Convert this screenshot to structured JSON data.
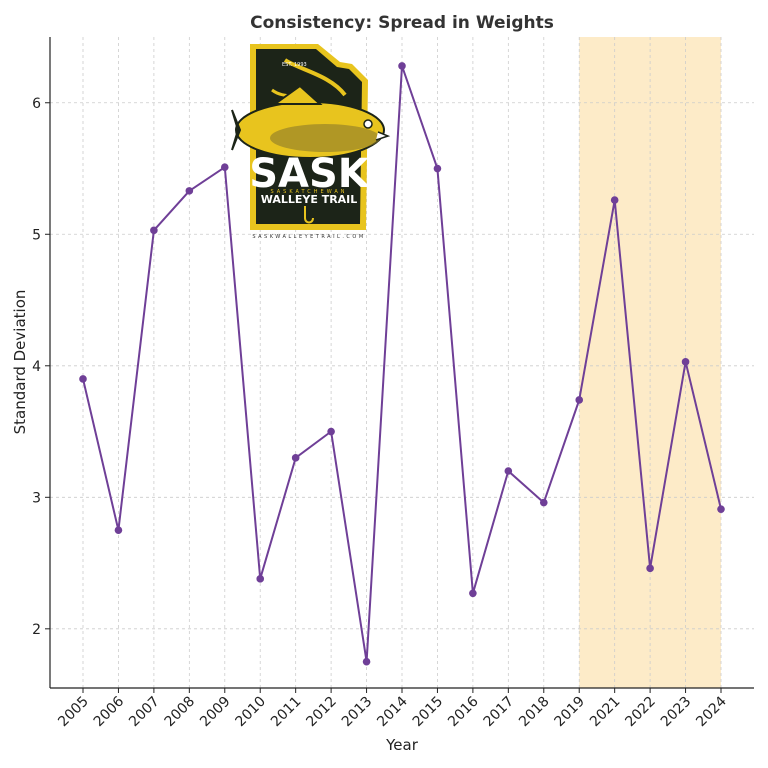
{
  "chart_data": {
    "type": "line",
    "title": "Consistency: Spread in Weights",
    "xlabel": "Year",
    "ylabel": "Standard Deviation",
    "categories": [
      "2005",
      "2006",
      "2007",
      "2008",
      "2009",
      "2010",
      "2011",
      "2012",
      "2013",
      "2014",
      "2015",
      "2016",
      "2017",
      "2018",
      "2019",
      "2021",
      "2022",
      "2023",
      "2024"
    ],
    "series": [
      {
        "values": [
          3.9,
          2.75,
          5.03,
          5.33,
          5.51,
          2.38,
          3.3,
          3.5,
          1.75,
          6.28,
          5.5,
          2.27,
          3.2,
          2.96,
          3.74,
          5.26,
          2.46,
          4.03,
          2.91
        ]
      }
    ],
    "ylim": [
      1.55,
      6.5
    ],
    "yticks": [
      2,
      3,
      4,
      5,
      6
    ],
    "grid": true,
    "highlight_range": [
      "2019",
      "2024"
    ],
    "colors": {
      "line": "#6f3f97",
      "highlight": "#fdebc8",
      "grid": "#cccccc",
      "axis": "#222222"
    }
  },
  "logo": {
    "brand": "SASK",
    "sub": "SASKATCHEWAN",
    "name": "WALLEYE TRAIL",
    "est": "EST. 1993",
    "url": "SASKWALLEYETRAIL.COM",
    "colors": {
      "dark": "#1c2418",
      "gold": "#e8c41e",
      "white": "#ffffff"
    }
  }
}
